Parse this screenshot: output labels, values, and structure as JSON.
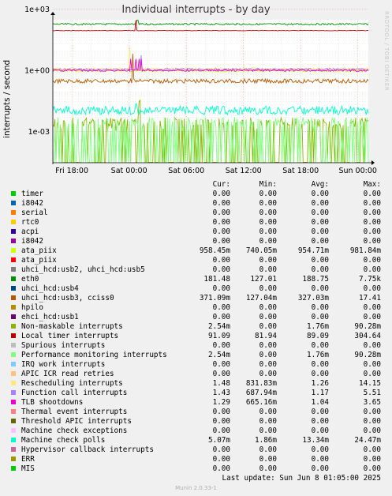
{
  "chart_data": {
    "type": "line",
    "title": "Individual interrupts - by day",
    "ylabel": "interrupts / second",
    "yscale": "log",
    "ylim": [
      3e-05,
      300
    ],
    "yticks": [
      "1e-03",
      "1e+00",
      "1e+03"
    ],
    "ytick_values": [
      0.001,
      1,
      1000
    ],
    "xticks": [
      "Fri 18:00",
      "Sat 00:00",
      "Sat 06:00",
      "Sat 12:00",
      "Sat 18:00",
      "Sun 00:00"
    ],
    "xtick_hours": [
      0,
      6,
      12,
      18,
      24,
      30
    ],
    "xlim_hours": [
      -2,
      31.1
    ],
    "grid": true,
    "columns": [
      "Cur:",
      "Min:",
      "Avg:",
      "Max:"
    ],
    "series": [
      {
        "name": "timer",
        "color": "#00cc00",
        "cur": "0.00",
        "min": "0.00",
        "avg": "0.00",
        "max": "0.00"
      },
      {
        "name": "i8042",
        "color": "#0066b3",
        "cur": "0.00",
        "min": "0.00",
        "avg": "0.00",
        "max": "0.00"
      },
      {
        "name": "serial",
        "color": "#ff8000",
        "cur": "0.00",
        "min": "0.00",
        "avg": "0.00",
        "max": "0.00"
      },
      {
        "name": "rtc0",
        "color": "#ffcc00",
        "cur": "0.00",
        "min": "0.00",
        "avg": "0.00",
        "max": "0.00"
      },
      {
        "name": "acpi",
        "color": "#330099",
        "cur": "0.00",
        "min": "0.00",
        "avg": "0.00",
        "max": "0.00"
      },
      {
        "name": "i8042",
        "color": "#990099",
        "cur": "0.00",
        "min": "0.00",
        "avg": "0.00",
        "max": "0.00"
      },
      {
        "name": "ata_piix",
        "color": "#ccff00",
        "cur": "958.45m",
        "min": "740.05m",
        "avg": "954.71m",
        "max": "981.84m"
      },
      {
        "name": "ata_piix",
        "color": "#ff0000",
        "cur": "0.00",
        "min": "0.00",
        "avg": "0.00",
        "max": "0.00"
      },
      {
        "name": "uhci_hcd:usb2, uhci_hcd:usb5",
        "color": "#808080",
        "cur": "0.00",
        "min": "0.00",
        "avg": "0.00",
        "max": "0.00"
      },
      {
        "name": "eth0",
        "color": "#008f00",
        "cur": "181.48",
        "min": "127.01",
        "avg": "188.75",
        "max": "7.75k"
      },
      {
        "name": "uhci_hcd:usb4",
        "color": "#00487d",
        "cur": "0.00",
        "min": "0.00",
        "avg": "0.00",
        "max": "0.00"
      },
      {
        "name": "uhci_hcd:usb3, cciss0",
        "color": "#b35a00",
        "cur": "371.09m",
        "min": "127.04m",
        "avg": "327.03m",
        "max": "17.41"
      },
      {
        "name": "hpilo",
        "color": "#b38f00",
        "cur": "0.00",
        "min": "0.00",
        "avg": "0.00",
        "max": "0.00"
      },
      {
        "name": "ehci_hcd:usb1",
        "color": "#6b006b",
        "cur": "0.00",
        "min": "0.00",
        "avg": "0.00",
        "max": "0.00"
      },
      {
        "name": "Non-maskable interrupts",
        "color": "#8fb300",
        "cur": "2.54m",
        "min": "0.00",
        "avg": "1.76m",
        "max": "90.28m"
      },
      {
        "name": "Local timer interrupts",
        "color": "#b30000",
        "cur": "91.09",
        "min": "81.94",
        "avg": "89.09",
        "max": "304.64"
      },
      {
        "name": "Spurious interrupts",
        "color": "#bebebe",
        "cur": "0.00",
        "min": "0.00",
        "avg": "0.00",
        "max": "0.00"
      },
      {
        "name": "Performance monitoring interrupts",
        "color": "#80ff80",
        "cur": "2.54m",
        "min": "0.00",
        "avg": "1.76m",
        "max": "90.28m"
      },
      {
        "name": "IRQ work interrupts",
        "color": "#80c9ff",
        "cur": "0.00",
        "min": "0.00",
        "avg": "0.00",
        "max": "0.00"
      },
      {
        "name": "APIC ICR read retries",
        "color": "#ffc080",
        "cur": "0.00",
        "min": "0.00",
        "avg": "0.00",
        "max": "0.00"
      },
      {
        "name": "Rescheduling interrupts",
        "color": "#ffe680",
        "cur": "1.48",
        "min": "831.83m",
        "avg": "1.26",
        "max": "14.15"
      },
      {
        "name": "Function call interrupts",
        "color": "#aa80ff",
        "cur": "1.43",
        "min": "687.94m",
        "avg": "1.17",
        "max": "5.51"
      },
      {
        "name": "TLB shootdowns",
        "color": "#ee00cc",
        "cur": "1.29",
        "min": "665.16m",
        "avg": "1.04",
        "max": "3.65"
      },
      {
        "name": "Thermal event interrupts",
        "color": "#ff8080",
        "cur": "0.00",
        "min": "0.00",
        "avg": "0.00",
        "max": "0.00"
      },
      {
        "name": "Threshold APIC interrupts",
        "color": "#666600",
        "cur": "0.00",
        "min": "0.00",
        "avg": "0.00",
        "max": "0.00"
      },
      {
        "name": "Machine check exceptions",
        "color": "#ffbfff",
        "cur": "0.00",
        "min": "0.00",
        "avg": "0.00",
        "max": "0.00"
      },
      {
        "name": "Machine check polls",
        "color": "#00ffcc",
        "cur": "5.07m",
        "min": "1.86m",
        "avg": "13.34m",
        "max": "24.47m"
      },
      {
        "name": "Hypervisor callback interrupts",
        "color": "#cc6699",
        "cur": "0.00",
        "min": "0.00",
        "avg": "0.00",
        "max": "0.00"
      },
      {
        "name": "ERR",
        "color": "#999900",
        "cur": "0.00",
        "min": "0.00",
        "avg": "0.00",
        "max": "0.00"
      },
      {
        "name": "MIS",
        "color": "#00cc00",
        "cur": "0.00",
        "min": "0.00",
        "avg": "0.00",
        "max": "0.00"
      }
    ]
  },
  "side_label": "RRDTOOL / TOBI OETIKER",
  "last_update": "Last update:  Sun Jun  8 01:05:00 2025",
  "version": "Munin 2.0.33-1"
}
